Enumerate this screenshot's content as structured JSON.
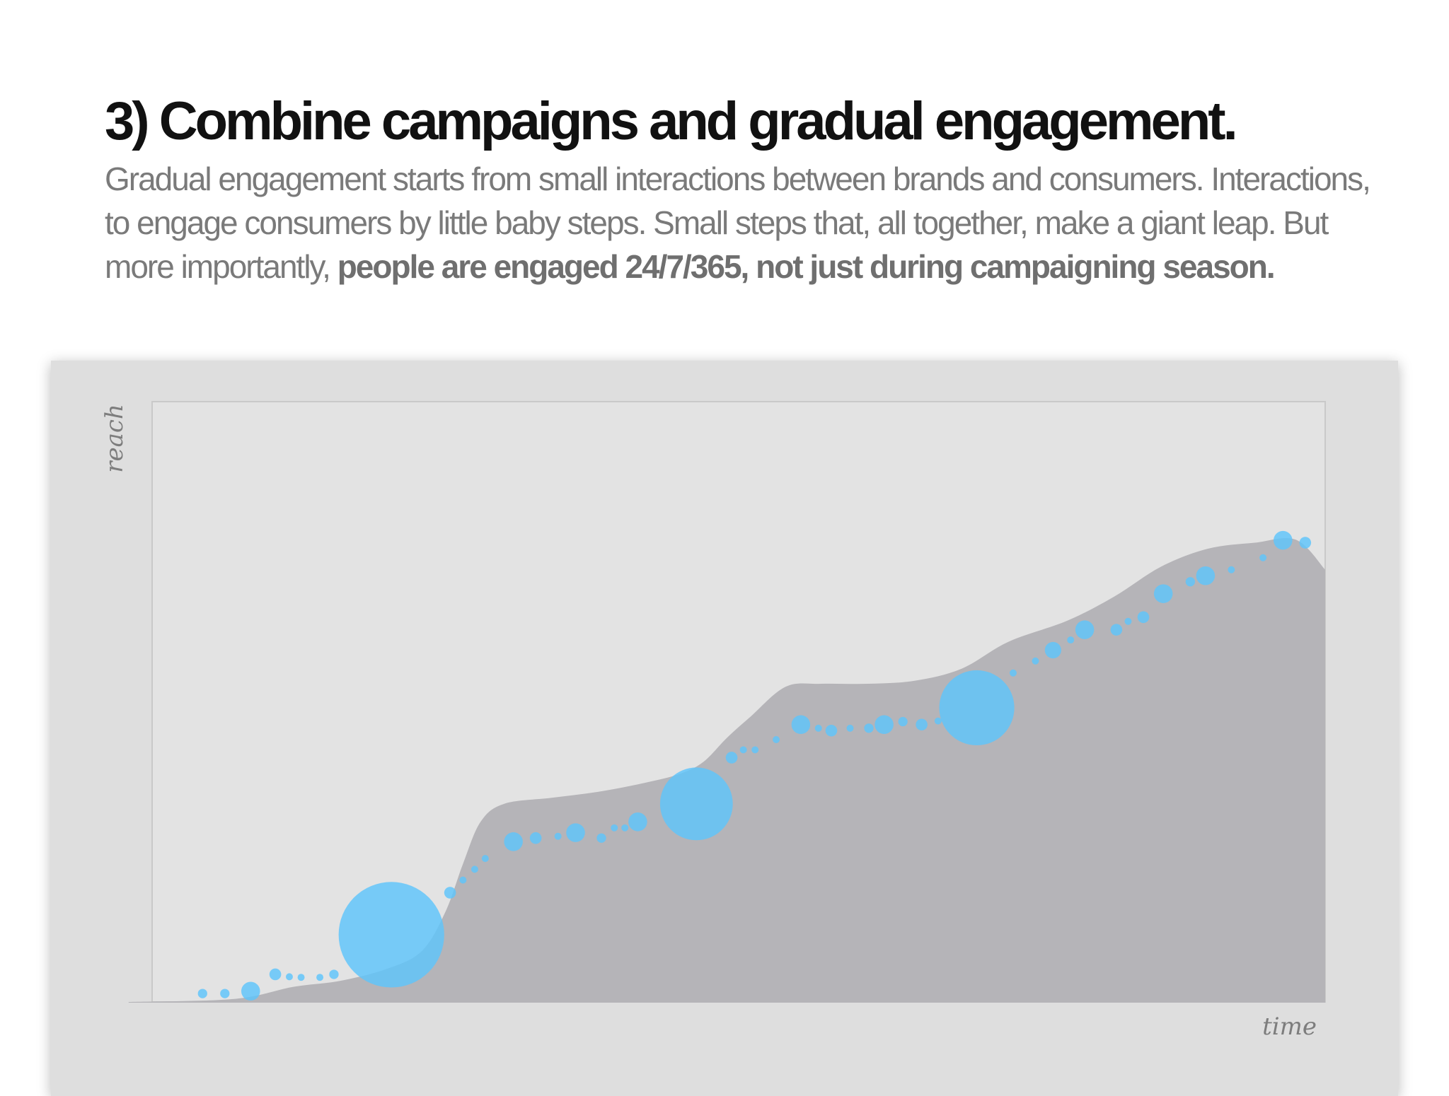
{
  "slide": {
    "title": "3) Combine campaigns and gradual engagement.",
    "body": {
      "text": "Gradual engagement starts from small interactions between brands and consumers. Interactions, to engage consumers by little baby steps. Small steps that, all together, make a giant leap. But more importantly, ",
      "emphasis": "people are engaged 24/7/365, not just during campaigning season."
    }
  },
  "chart_data": {
    "type": "area",
    "title": "",
    "xlabel": "time",
    "ylabel": "reach",
    "xlim": [
      0,
      100
    ],
    "ylim": [
      0,
      100
    ],
    "grid": false,
    "legend": "none",
    "colors": {
      "area": "#b5b4b8",
      "bubble": "#5ec4fb",
      "plot_background": "#e3e3e3",
      "panel_background": "#dedede"
    },
    "series": [
      {
        "values": [
          {
            "x": -2,
            "y": 0
          },
          {
            "x": 7,
            "y": 0.5
          },
          {
            "x": 12,
            "y": 2.5
          },
          {
            "x": 16,
            "y": 3.5
          },
          {
            "x": 20,
            "y": 5.5
          },
          {
            "x": 23,
            "y": 8.5
          },
          {
            "x": 25,
            "y": 15
          },
          {
            "x": 26.5,
            "y": 23
          },
          {
            "x": 28,
            "y": 30
          },
          {
            "x": 30,
            "y": 33
          },
          {
            "x": 34,
            "y": 34
          },
          {
            "x": 38,
            "y": 35
          },
          {
            "x": 42,
            "y": 36.5
          },
          {
            "x": 45,
            "y": 38
          },
          {
            "x": 47,
            "y": 40
          },
          {
            "x": 49,
            "y": 44
          },
          {
            "x": 51,
            "y": 47.5
          },
          {
            "x": 54,
            "y": 52.5
          },
          {
            "x": 57,
            "y": 53
          },
          {
            "x": 61,
            "y": 53
          },
          {
            "x": 65,
            "y": 53.5
          },
          {
            "x": 69,
            "y": 55.5
          },
          {
            "x": 73,
            "y": 60
          },
          {
            "x": 78,
            "y": 63.5
          },
          {
            "x": 82,
            "y": 67.5
          },
          {
            "x": 86,
            "y": 72.5
          },
          {
            "x": 90,
            "y": 75.5
          },
          {
            "x": 94,
            "y": 76.5
          },
          {
            "x": 97.5,
            "y": 77
          },
          {
            "x": 100,
            "y": 72
          }
        ]
      }
    ],
    "bubbles": [
      {
        "x": 4.3,
        "y": 1.4,
        "size": 0.8
      },
      {
        "x": 6.2,
        "y": 1.4,
        "size": 0.8
      },
      {
        "x": 8.4,
        "y": 1.8,
        "size": 1.6
      },
      {
        "x": 10.5,
        "y": 4.6,
        "size": 1.0
      },
      {
        "x": 11.7,
        "y": 4.2,
        "size": 0.6
      },
      {
        "x": 12.7,
        "y": 4.1,
        "size": 0.6
      },
      {
        "x": 14.3,
        "y": 4.1,
        "size": 0.6
      },
      {
        "x": 15.5,
        "y": 4.6,
        "size": 0.8
      },
      {
        "x": 20.4,
        "y": 11.2,
        "size": 9.0
      },
      {
        "x": 25.4,
        "y": 18.2,
        "size": 1.0
      },
      {
        "x": 26.5,
        "y": 20.3,
        "size": 0.6
      },
      {
        "x": 27.5,
        "y": 22.1,
        "size": 0.6
      },
      {
        "x": 28.4,
        "y": 23.9,
        "size": 0.6
      },
      {
        "x": 30.8,
        "y": 26.7,
        "size": 1.6
      },
      {
        "x": 32.7,
        "y": 27.3,
        "size": 1.0
      },
      {
        "x": 34.6,
        "y": 27.6,
        "size": 0.6
      },
      {
        "x": 36.1,
        "y": 28.2,
        "size": 1.6
      },
      {
        "x": 38.3,
        "y": 27.3,
        "size": 0.8
      },
      {
        "x": 39.4,
        "y": 29.0,
        "size": 0.6
      },
      {
        "x": 40.3,
        "y": 29.0,
        "size": 0.6
      },
      {
        "x": 41.4,
        "y": 30.0,
        "size": 1.6
      },
      {
        "x": 46.4,
        "y": 33.0,
        "size": 6.2
      },
      {
        "x": 49.4,
        "y": 40.7,
        "size": 1.0
      },
      {
        "x": 50.4,
        "y": 42.0,
        "size": 0.6
      },
      {
        "x": 51.4,
        "y": 42.0,
        "size": 0.6
      },
      {
        "x": 53.2,
        "y": 43.7,
        "size": 0.6
      },
      {
        "x": 55.3,
        "y": 46.2,
        "size": 1.6
      },
      {
        "x": 56.8,
        "y": 45.6,
        "size": 0.6
      },
      {
        "x": 57.9,
        "y": 45.2,
        "size": 1.0
      },
      {
        "x": 59.5,
        "y": 45.6,
        "size": 0.6
      },
      {
        "x": 61.1,
        "y": 45.6,
        "size": 0.8
      },
      {
        "x": 62.4,
        "y": 46.2,
        "size": 1.6
      },
      {
        "x": 64.0,
        "y": 46.7,
        "size": 0.8
      },
      {
        "x": 65.6,
        "y": 46.2,
        "size": 1.0
      },
      {
        "x": 67.0,
        "y": 46.8,
        "size": 0.6
      },
      {
        "x": 70.3,
        "y": 49.0,
        "size": 6.4
      },
      {
        "x": 73.4,
        "y": 54.8,
        "size": 0.6
      },
      {
        "x": 75.3,
        "y": 56.8,
        "size": 0.6
      },
      {
        "x": 76.8,
        "y": 58.6,
        "size": 1.4
      },
      {
        "x": 78.3,
        "y": 60.3,
        "size": 0.6
      },
      {
        "x": 79.5,
        "y": 62.0,
        "size": 1.6
      },
      {
        "x": 82.2,
        "y": 62.0,
        "size": 1.0
      },
      {
        "x": 83.2,
        "y": 63.4,
        "size": 0.6
      },
      {
        "x": 84.5,
        "y": 64.1,
        "size": 1.0
      },
      {
        "x": 86.2,
        "y": 68.0,
        "size": 1.6
      },
      {
        "x": 88.5,
        "y": 70.0,
        "size": 0.8
      },
      {
        "x": 89.8,
        "y": 71.0,
        "size": 1.6
      },
      {
        "x": 92.0,
        "y": 72.0,
        "size": 0.6
      },
      {
        "x": 94.7,
        "y": 74.0,
        "size": 0.6
      },
      {
        "x": 96.4,
        "y": 76.9,
        "size": 1.6
      },
      {
        "x": 98.3,
        "y": 76.5,
        "size": 1.0
      }
    ]
  }
}
